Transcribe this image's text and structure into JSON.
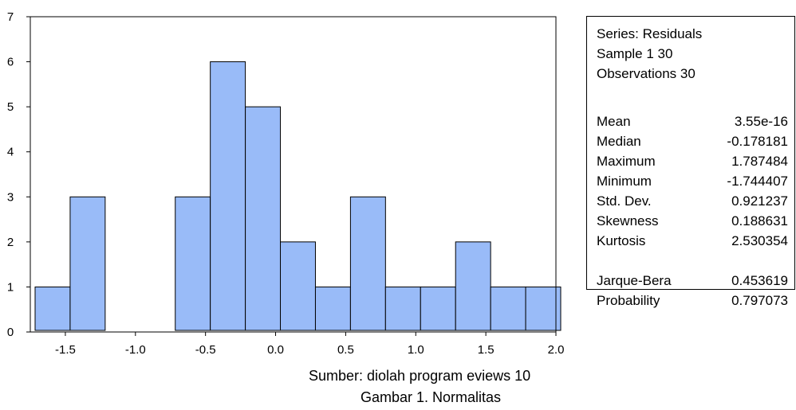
{
  "chart_data": {
    "type": "bar",
    "subtype": "histogram",
    "bin_edges": [
      -1.75,
      -1.5,
      -1.25,
      -1.0,
      -0.75,
      -0.5,
      -0.25,
      0.0,
      0.25,
      0.5,
      0.75,
      1.0,
      1.25,
      1.5,
      1.75,
      2.0
    ],
    "counts": [
      1,
      3,
      0,
      0,
      3,
      6,
      5,
      2,
      1,
      3,
      1,
      1,
      2,
      1,
      1
    ],
    "xlim": [
      -1.75,
      2.0
    ],
    "ylim": [
      0,
      7
    ],
    "x_ticks": [
      "-1.5",
      "-1.0",
      "-0.5",
      "0.0",
      "0.5",
      "1.0",
      "1.5",
      "2.0"
    ],
    "y_ticks": [
      "0",
      "1",
      "2",
      "3",
      "4",
      "5",
      "6",
      "7"
    ],
    "bar_color": "#99BBF8",
    "grid": false
  },
  "stats": {
    "header": [
      "Series: Residuals",
      "Sample 1 30",
      "Observations 30"
    ],
    "rows": [
      {
        "label": "Mean",
        "value": "3.55e-16"
      },
      {
        "label": "Median",
        "value": "-0.178181"
      },
      {
        "label": "Maximum",
        "value": "1.787484"
      },
      {
        "label": "Minimum",
        "value": "-1.744407"
      },
      {
        "label": "Std. Dev.",
        "value": "0.921237"
      },
      {
        "label": "Skewness",
        "value": "0.188631"
      },
      {
        "label": "Kurtosis",
        "value": "2.530354"
      }
    ],
    "test_rows": [
      {
        "label": "Jarque-Bera",
        "value": "0.453619"
      },
      {
        "label": "Probability",
        "value": "0.797073"
      }
    ]
  },
  "captions": {
    "source": "Sumber: diolah program eviews 10",
    "figure": "Gambar 1. Normalitas"
  }
}
